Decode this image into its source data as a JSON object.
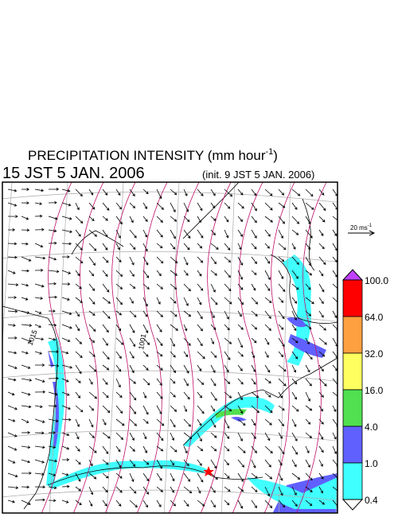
{
  "title": {
    "text": "PRECIPITATION INTENSITY (mm hour",
    "superscript": "-1",
    "close": ")"
  },
  "valid_time": "15 JST 5 JAN. 2006",
  "init_time": "(init. 9 JST 5 JAN. 2006)",
  "vector_scale": {
    "label": "20 ms",
    "superscript": "-1"
  },
  "colorbar": {
    "labels": [
      "100.0",
      "64.0",
      "32.0",
      "16.0",
      "4.0",
      "1.0",
      "0.4"
    ],
    "colors": [
      "#ff0000",
      "#ffa040",
      "#ffff60",
      "#50e050",
      "#6060ff",
      "#40ffff"
    ],
    "over_color": "#c040ff",
    "under_color": "#ffffff"
  },
  "contour_labels": [
    "1015",
    "1001"
  ]
}
